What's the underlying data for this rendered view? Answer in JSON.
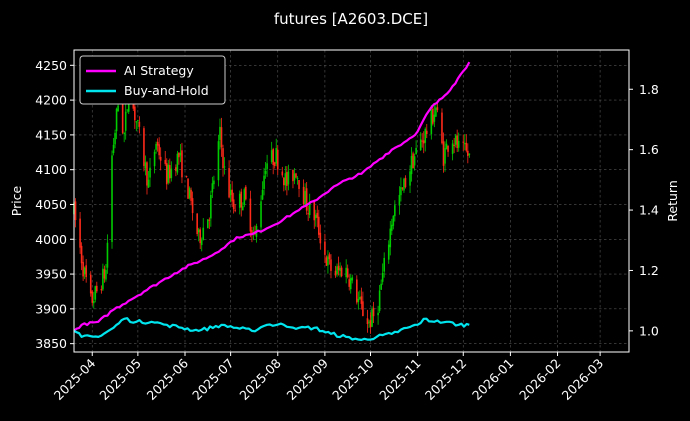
{
  "chart_data": {
    "type": "line",
    "title": "futures [A2603.DCE]",
    "xlabel": "",
    "ylabel_left": "Price",
    "ylabel_right": "Return",
    "x_ticks": [
      "2025-04",
      "2025-05",
      "2025-06",
      "2025-07",
      "2025-08",
      "2025-09",
      "2025-10",
      "2025-11",
      "2025-12",
      "2026-01",
      "2026-02",
      "2026-03"
    ],
    "x_range": [
      "2025-03-20",
      "2026-03-20"
    ],
    "y_left_ticks": [
      3850,
      3900,
      3950,
      4000,
      4050,
      4100,
      4150,
      4200,
      4250
    ],
    "y_left_range": [
      3838,
      4272
    ],
    "y_right_ticks": [
      1.0,
      1.2,
      1.4,
      1.6,
      1.8
    ],
    "y_right_range": [
      0.93,
      1.93
    ],
    "grid": true,
    "legend_placement": "top-left",
    "colors": {
      "background": "#000000",
      "up_candle": "#00cc00",
      "down_candle": "#ff2a1a",
      "ai_strategy": "#ff00ff",
      "buy_and_hold": "#00e5ee",
      "grid": "#555555"
    },
    "candles": {
      "start_date": "2025-03-20",
      "end_date": "2025-12-05",
      "close_path": [
        [
          "2025-03-20",
          4040
        ],
        [
          "2025-03-26",
          3960
        ],
        [
          "2025-03-31",
          3910
        ],
        [
          "2025-04-04",
          3925
        ],
        [
          "2025-04-10",
          3955
        ],
        [
          "2025-04-14",
          4120
        ],
        [
          "2025-04-18",
          4195
        ],
        [
          "2025-04-22",
          4150
        ],
        [
          "2025-04-25",
          4215
        ],
        [
          "2025-04-30",
          4170
        ],
        [
          "2025-05-08",
          4080
        ],
        [
          "2025-05-13",
          4140
        ],
        [
          "2025-05-20",
          4090
        ],
        [
          "2025-05-28",
          4120
        ],
        [
          "2025-06-03",
          4070
        ],
        [
          "2025-06-10",
          4000
        ],
        [
          "2025-06-17",
          4040
        ],
        [
          "2025-06-24",
          4150
        ],
        [
          "2025-06-28",
          4080
        ],
        [
          "2025-07-03",
          4050
        ],
        [
          "2025-07-10",
          4060
        ],
        [
          "2025-07-17",
          4000
        ],
        [
          "2025-07-24",
          4110
        ],
        [
          "2025-07-31",
          4120
        ],
        [
          "2025-08-07",
          4080
        ],
        [
          "2025-08-13",
          4100
        ],
        [
          "2025-08-20",
          4050
        ],
        [
          "2025-08-26",
          4030
        ],
        [
          "2025-09-02",
          3970
        ],
        [
          "2025-09-07",
          3950
        ],
        [
          "2025-09-14",
          3960
        ],
        [
          "2025-09-20",
          3930
        ],
        [
          "2025-09-25",
          3900
        ],
        [
          "2025-09-30",
          3880
        ],
        [
          "2025-10-05",
          3895
        ],
        [
          "2025-10-10",
          3960
        ],
        [
          "2025-10-16",
          4040
        ],
        [
          "2025-10-22",
          4070
        ],
        [
          "2025-10-28",
          4110
        ],
        [
          "2025-11-03",
          4140
        ],
        [
          "2025-11-08",
          4160
        ],
        [
          "2025-11-13",
          4190
        ],
        [
          "2025-11-18",
          4120
        ],
        [
          "2025-11-23",
          4150
        ],
        [
          "2025-11-28",
          4130
        ],
        [
          "2025-12-05",
          4120
        ]
      ]
    },
    "series": [
      {
        "name": "AI Strategy",
        "color": "#ff00ff",
        "axis": "right",
        "points": [
          [
            "2025-03-20",
            1.0
          ],
          [
            "2025-03-25",
            1.02
          ],
          [
            "2025-04-05",
            1.03
          ],
          [
            "2025-04-15",
            1.07
          ],
          [
            "2025-04-25",
            1.1
          ],
          [
            "2025-05-05",
            1.13
          ],
          [
            "2025-05-15",
            1.16
          ],
          [
            "2025-05-25",
            1.19
          ],
          [
            "2025-06-05",
            1.22
          ],
          [
            "2025-06-15",
            1.24
          ],
          [
            "2025-06-25",
            1.27
          ],
          [
            "2025-07-05",
            1.31
          ],
          [
            "2025-07-15",
            1.32
          ],
          [
            "2025-07-25",
            1.34
          ],
          [
            "2025-08-05",
            1.37
          ],
          [
            "2025-08-15",
            1.4
          ],
          [
            "2025-08-25",
            1.43
          ],
          [
            "2025-09-05",
            1.47
          ],
          [
            "2025-09-15",
            1.5
          ],
          [
            "2025-09-25",
            1.52
          ],
          [
            "2025-10-05",
            1.56
          ],
          [
            "2025-10-15",
            1.6
          ],
          [
            "2025-10-25",
            1.63
          ],
          [
            "2025-11-01",
            1.66
          ],
          [
            "2025-11-05",
            1.7
          ],
          [
            "2025-11-10",
            1.74
          ],
          [
            "2025-11-17",
            1.77
          ],
          [
            "2025-11-24",
            1.81
          ],
          [
            "2025-12-01",
            1.86
          ],
          [
            "2025-12-05",
            1.89
          ]
        ]
      },
      {
        "name": "Buy-and-Hold",
        "color": "#00e5ee",
        "axis": "right",
        "points": [
          [
            "2025-03-20",
            1.0
          ],
          [
            "2025-03-25",
            0.98
          ],
          [
            "2025-04-05",
            0.98
          ],
          [
            "2025-04-15",
            1.01
          ],
          [
            "2025-04-22",
            1.04
          ],
          [
            "2025-04-30",
            1.03
          ],
          [
            "2025-05-10",
            1.03
          ],
          [
            "2025-05-20",
            1.02
          ],
          [
            "2025-05-30",
            1.01
          ],
          [
            "2025-06-10",
            1.0
          ],
          [
            "2025-06-25",
            1.02
          ],
          [
            "2025-07-05",
            1.01
          ],
          [
            "2025-07-15",
            1.0
          ],
          [
            "2025-07-25",
            1.02
          ],
          [
            "2025-08-05",
            1.02
          ],
          [
            "2025-08-15",
            1.01
          ],
          [
            "2025-08-25",
            1.01
          ],
          [
            "2025-09-05",
            0.99
          ],
          [
            "2025-09-15",
            0.98
          ],
          [
            "2025-09-25",
            0.97
          ],
          [
            "2025-10-05",
            0.98
          ],
          [
            "2025-10-15",
            0.99
          ],
          [
            "2025-10-25",
            1.01
          ],
          [
            "2025-11-01",
            1.02
          ],
          [
            "2025-11-05",
            1.04
          ],
          [
            "2025-11-12",
            1.03
          ],
          [
            "2025-11-20",
            1.03
          ],
          [
            "2025-11-28",
            1.02
          ],
          [
            "2025-12-05",
            1.02
          ]
        ]
      }
    ]
  }
}
